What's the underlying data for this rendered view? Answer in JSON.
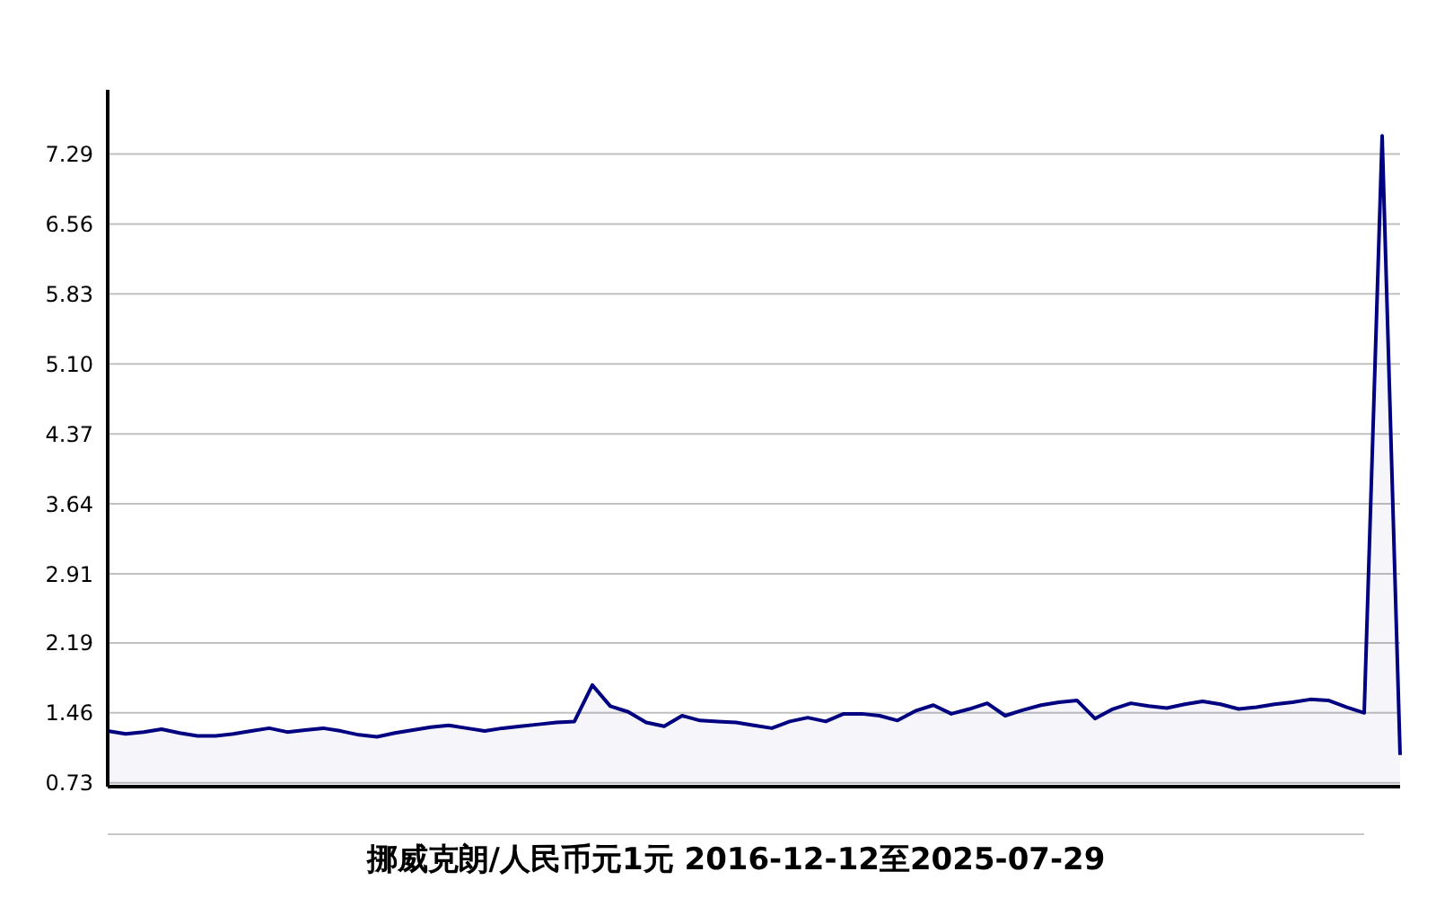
{
  "chart_data": {
    "type": "area",
    "title": "挪威克朗/人民币元1元  2016-12-12至2025-07-29",
    "categories": [
      null,
      null,
      null,
      null,
      null,
      null,
      null,
      null,
      null,
      null,
      null,
      null,
      null,
      null,
      null,
      null,
      null,
      null,
      null,
      null,
      null,
      null,
      null,
      null,
      null,
      null,
      null,
      null,
      null,
      null,
      null,
      null,
      null,
      null,
      null,
      null,
      null,
      null,
      null,
      null,
      null,
      null,
      null,
      null,
      null,
      null,
      null,
      null,
      null,
      null,
      null,
      null,
      null,
      null,
      null,
      null,
      null,
      null,
      null,
      null,
      null,
      null,
      null,
      null,
      null,
      null,
      null,
      null,
      null,
      null,
      null,
      null,
      null
    ],
    "series": [
      {
        "color": "#000080",
        "values": [
          1.27,
          1.24,
          1.26,
          1.29,
          1.25,
          1.22,
          1.22,
          1.24,
          1.27,
          1.3,
          1.26,
          1.28,
          1.3,
          1.27,
          1.23,
          1.21,
          1.25,
          1.28,
          1.31,
          1.33,
          1.3,
          1.27,
          1.3,
          1.32,
          1.34,
          1.36,
          1.37,
          1.75,
          1.53,
          1.47,
          1.36,
          1.32,
          1.43,
          1.38,
          1.37,
          1.36,
          1.33,
          1.3,
          1.37,
          1.41,
          1.37,
          1.45,
          1.45,
          1.43,
          1.38,
          1.48,
          1.54,
          1.45,
          1.5,
          1.56,
          1.43,
          1.49,
          1.54,
          1.57,
          1.59,
          1.4,
          1.5,
          1.56,
          1.53,
          1.51,
          1.55,
          1.58,
          1.55,
          1.5,
          1.52,
          1.55,
          1.57,
          1.6,
          1.59,
          1.52,
          1.46,
          7.48,
          1.02
        ]
      }
    ],
    "ylim": [
      0.69,
      7.96
    ],
    "yticks": [
      {
        "value": 0.73,
        "label": "0.73"
      },
      {
        "value": 1.46,
        "label": "1.46"
      },
      {
        "value": 2.19,
        "label": "2.19"
      },
      {
        "value": 2.91,
        "label": "2.91"
      },
      {
        "value": 3.64,
        "label": "3.64"
      },
      {
        "value": 4.37,
        "label": "4.37"
      },
      {
        "value": 5.1,
        "label": "5.10"
      },
      {
        "value": 5.83,
        "label": "5.83"
      },
      {
        "value": 6.56,
        "label": "6.56"
      },
      {
        "value": 7.29,
        "label": "7.29"
      }
    ],
    "tick_labels": "y",
    "grid": "y"
  }
}
